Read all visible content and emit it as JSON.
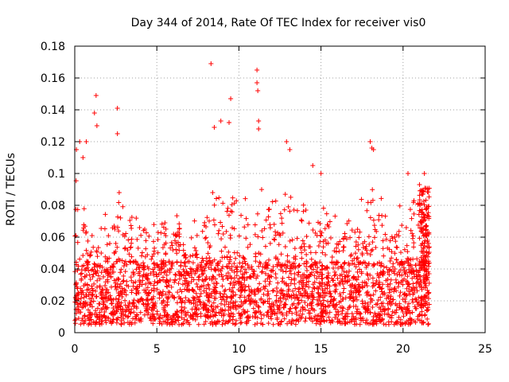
{
  "chart_data": {
    "type": "scatter",
    "title": "Day 344 of 2014, Rate Of TEC Index for receiver vis0",
    "xlabel": "GPS time / hours",
    "ylabel": "ROTI / TECUs",
    "xlim": [
      0,
      25
    ],
    "ylim": [
      0,
      0.18
    ],
    "xticks": [
      0,
      5,
      10,
      15,
      20,
      25
    ],
    "xtick_labels": [
      "0",
      "5",
      "10",
      "15",
      "20",
      "25"
    ],
    "yticks": [
      0,
      0.02,
      0.04,
      0.06,
      0.08,
      0.1,
      0.12,
      0.14,
      0.16,
      0.18
    ],
    "ytick_labels": [
      "0",
      "0.02",
      "0.04",
      "0.06",
      "0.08",
      "0.1",
      "0.12",
      "0.14",
      "0.16",
      "0.18"
    ],
    "grid": true,
    "marker": "+",
    "color": "#ff0000",
    "series": [
      {
        "name": "ROTI",
        "x_range": [
          0,
          21.6
        ],
        "baseline_band": [
          0.005,
          0.045
        ],
        "notable_points": [
          {
            "x": 0.1,
            "y": 0.115
          },
          {
            "x": 0.3,
            "y": 0.12
          },
          {
            "x": 0.5,
            "y": 0.11
          },
          {
            "x": 0.7,
            "y": 0.12
          },
          {
            "x": 1.2,
            "y": 0.138
          },
          {
            "x": 1.3,
            "y": 0.149
          },
          {
            "x": 1.35,
            "y": 0.13
          },
          {
            "x": 2.6,
            "y": 0.141
          },
          {
            "x": 2.6,
            "y": 0.125
          },
          {
            "x": 8.3,
            "y": 0.169
          },
          {
            "x": 8.5,
            "y": 0.129
          },
          {
            "x": 8.9,
            "y": 0.133
          },
          {
            "x": 9.5,
            "y": 0.147
          },
          {
            "x": 9.4,
            "y": 0.132
          },
          {
            "x": 11.1,
            "y": 0.165
          },
          {
            "x": 11.1,
            "y": 0.157
          },
          {
            "x": 11.15,
            "y": 0.152
          },
          {
            "x": 11.2,
            "y": 0.133
          },
          {
            "x": 11.2,
            "y": 0.128
          },
          {
            "x": 12.9,
            "y": 0.12
          },
          {
            "x": 13.1,
            "y": 0.115
          },
          {
            "x": 14.5,
            "y": 0.105
          },
          {
            "x": 15.0,
            "y": 0.1
          },
          {
            "x": 18.0,
            "y": 0.12
          },
          {
            "x": 18.1,
            "y": 0.116
          },
          {
            "x": 18.2,
            "y": 0.115
          },
          {
            "x": 20.3,
            "y": 0.1
          },
          {
            "x": 21.0,
            "y": 0.093
          },
          {
            "x": 21.3,
            "y": 0.1
          },
          {
            "x": 21.5,
            "y": 0.09
          }
        ]
      }
    ]
  }
}
